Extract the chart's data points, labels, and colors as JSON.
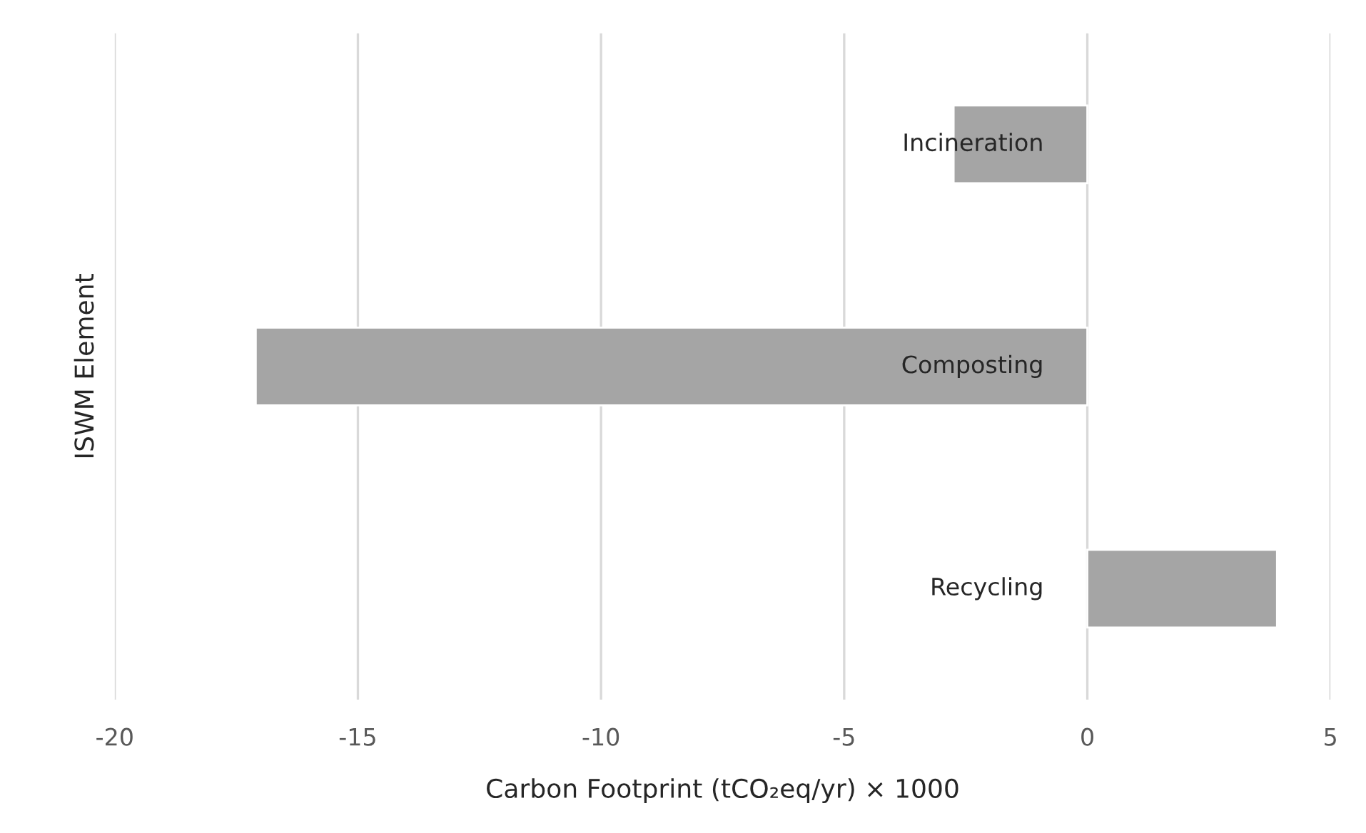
{
  "chart_data": {
    "type": "bar",
    "orientation": "horizontal",
    "categories": [
      "Incineration",
      "Composting",
      "Recycling"
    ],
    "values": [
      -2.75,
      -17.1,
      3.9
    ],
    "color": "#a5a5a5",
    "xlabel": "Carbon Footprint (tCO₂eq/yr) × 1000",
    "ylabel": "ISWM Element",
    "xlim": [
      -20,
      5
    ],
    "xticks": [
      -20,
      -15,
      -10,
      -5,
      0,
      5
    ],
    "grid": "x"
  }
}
